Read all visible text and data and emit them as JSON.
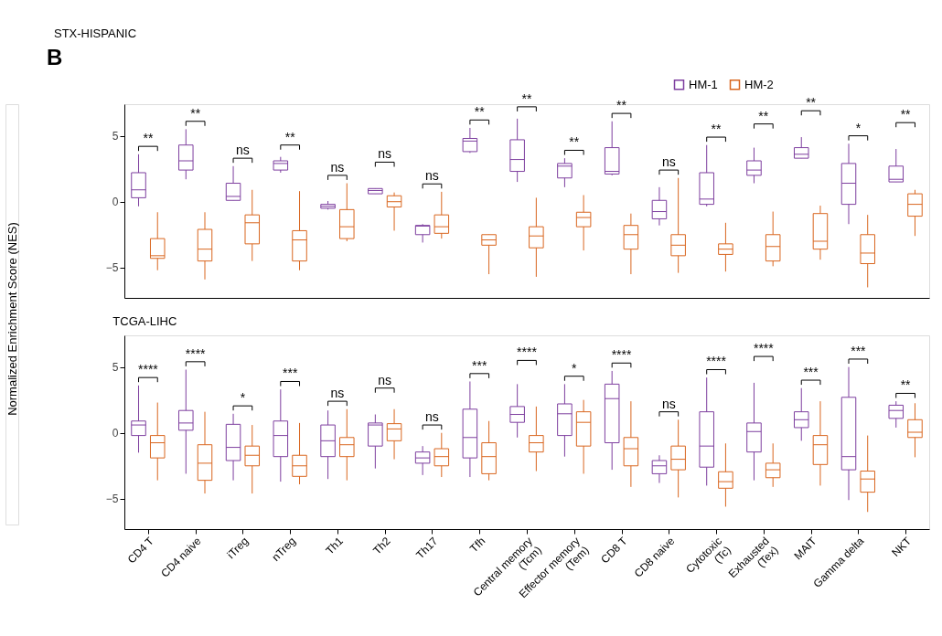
{
  "chart_data": [
    {
      "type": "box",
      "title": "STX-HISPANIC",
      "ylabel": "Normalized Enrichment Score (NES)",
      "annotations": [
        "B",
        "**",
        "**",
        "ns",
        "**",
        "ns",
        "ns",
        "ns",
        "**",
        "**",
        "**",
        "**",
        "ns",
        "**",
        "**",
        "**",
        "*",
        "**"
      ],
      "categories": [
        null,
        null,
        null,
        null,
        null,
        null,
        null,
        null,
        null,
        null,
        null,
        null,
        null,
        null,
        null,
        null,
        null
      ],
      "ylim": [
        -7.3,
        7.4
      ],
      "yticks": [
        -5,
        0,
        5
      ],
      "grid": false,
      "legend": "top right",
      "tick_labels": "y",
      "series": [
        {
          "name": "HM-1",
          "color": "#7e3f9f",
          "boxes": [
            {
              "low": -0.35,
              "q1": 0.3,
              "median": 0.9,
              "q3": 2.2,
              "high": 3.6
            },
            {
              "low": 1.7,
              "q1": 2.4,
              "median": 3.1,
              "q3": 4.3,
              "high": 5.5
            },
            {
              "low": 0.1,
              "q1": 0.1,
              "median": 0.4,
              "q3": 1.4,
              "high": 2.7
            },
            {
              "low": 2.2,
              "q1": 2.4,
              "median": 2.9,
              "q3": 3.1,
              "high": 3.4
            },
            {
              "low": -0.6,
              "q1": -0.5,
              "median": -0.35,
              "q3": -0.2,
              "high": 0.05
            },
            {
              "low": 0.6,
              "q1": 0.6,
              "median": 0.85,
              "q3": 1.0,
              "high": 1.0
            },
            {
              "low": -3.1,
              "q1": -2.5,
              "median": -1.85,
              "q3": -1.8,
              "high": -1.7
            },
            {
              "low": 3.7,
              "q1": 3.8,
              "median": 4.6,
              "q3": 4.8,
              "high": 5.6
            },
            {
              "low": 1.5,
              "q1": 2.3,
              "median": 3.2,
              "q3": 4.7,
              "high": 6.3
            },
            {
              "low": 1.1,
              "q1": 1.8,
              "median": 2.7,
              "q3": 2.9,
              "high": 3.3
            },
            {
              "low": 2.0,
              "q1": 2.1,
              "median": 2.3,
              "q3": 4.1,
              "high": 6.1
            },
            {
              "low": -1.8,
              "q1": -1.3,
              "median": -0.75,
              "q3": 0.1,
              "high": 1.1
            },
            {
              "low": -0.35,
              "q1": -0.2,
              "median": 0.2,
              "q3": 2.2,
              "high": 4.3
            },
            {
              "low": 1.4,
              "q1": 2.0,
              "median": 2.4,
              "q3": 3.1,
              "high": 4.1
            },
            {
              "low": 3.3,
              "q1": 3.3,
              "median": 3.6,
              "q3": 4.1,
              "high": 4.9
            },
            {
              "low": -1.7,
              "q1": -0.2,
              "median": 1.4,
              "q3": 2.9,
              "high": 4.4
            },
            {
              "low": 1.5,
              "q1": 1.5,
              "median": 1.7,
              "q3": 2.7,
              "high": 4.0
            }
          ]
        },
        {
          "name": "HM-2",
          "color": "#d9661f",
          "boxes": [
            {
              "low": -5.2,
              "q1": -4.3,
              "median": -4.1,
              "q3": -2.8,
              "high": -0.8
            },
            {
              "low": -5.9,
              "q1": -4.5,
              "median": -3.6,
              "q3": -2.1,
              "high": -0.8
            },
            {
              "low": -4.5,
              "q1": -3.2,
              "median": -1.6,
              "q3": -1.0,
              "high": 0.9
            },
            {
              "low": -5.2,
              "q1": -4.5,
              "median": -2.9,
              "q3": -2.2,
              "high": 0.8
            },
            {
              "low": -3.0,
              "q1": -2.8,
              "median": -1.9,
              "q3": -0.6,
              "high": 1.4
            },
            {
              "low": -2.2,
              "q1": -0.4,
              "median": 0.0,
              "q3": 0.45,
              "high": 0.7
            },
            {
              "low": -2.8,
              "q1": -2.4,
              "median": -1.9,
              "q3": -1.0,
              "high": 0.75
            },
            {
              "low": -5.5,
              "q1": -3.3,
              "median": -2.9,
              "q3": -2.5,
              "high": -2.5
            },
            {
              "low": -5.7,
              "q1": -3.5,
              "median": -2.6,
              "q3": -1.9,
              "high": 0.3
            },
            {
              "low": -3.7,
              "q1": -1.9,
              "median": -1.2,
              "q3": -0.8,
              "high": 0.5
            },
            {
              "low": -5.5,
              "q1": -3.6,
              "median": -2.5,
              "q3": -1.8,
              "high": -0.9
            },
            {
              "low": -5.4,
              "q1": -4.1,
              "median": -3.3,
              "q3": -2.5,
              "high": 1.8
            },
            {
              "low": -5.3,
              "q1": -4.0,
              "median": -3.6,
              "q3": -3.2,
              "high": -1.6
            },
            {
              "low": -4.9,
              "q1": -4.5,
              "median": -3.4,
              "q3": -2.5,
              "high": -0.75
            },
            {
              "low": -4.4,
              "q1": -3.6,
              "median": -3.0,
              "q3": -0.9,
              "high": -0.3
            },
            {
              "low": -6.5,
              "q1": -4.7,
              "median": -3.9,
              "q3": -2.5,
              "high": -1.0
            },
            {
              "low": -2.6,
              "q1": -1.1,
              "median": -0.2,
              "q3": 0.6,
              "high": 0.9
            }
          ]
        }
      ]
    },
    {
      "type": "box",
      "title": "TCGA-LIHC",
      "annotations": [
        "****",
        "****",
        "*",
        "***",
        "ns",
        "ns",
        "ns",
        "***",
        "****",
        "*",
        "****",
        "ns",
        "****",
        "****",
        "***",
        "***",
        "**"
      ],
      "categories": [
        "CD4 T",
        "CD4 naive",
        "iTreg",
        "nTreg",
        "Th1",
        "Th2",
        "Th17",
        "Tfh",
        "Central memory\n(Tcm)",
        "Effector memory\n(Tem)",
        "CD8 T",
        "CD8 naive",
        "Cytotoxic\n(Tc)",
        "Exhausted\n(Tex)",
        "MAIT",
        "Gamma delta",
        "NKT"
      ],
      "ylim": [
        -7.3,
        7.4
      ],
      "yticks": [
        -5,
        0,
        5
      ],
      "grid": false,
      "series": [
        {
          "name": "HM-1",
          "color": "#7e3f9f",
          "boxes": [
            {
              "low": -1.5,
              "q1": -0.2,
              "median": 0.6,
              "q3": 0.9,
              "high": 3.6
            },
            {
              "low": -3.1,
              "q1": 0.2,
              "median": 0.75,
              "q3": 1.7,
              "high": 4.8
            },
            {
              "low": -3.6,
              "q1": -2.1,
              "median": -1.1,
              "q3": 0.65,
              "high": 1.45
            },
            {
              "low": -3.7,
              "q1": -1.8,
              "median": -0.2,
              "q3": 0.9,
              "high": 3.3
            },
            {
              "low": -3.5,
              "q1": -1.8,
              "median": -0.6,
              "q3": 0.6,
              "high": 1.7
            },
            {
              "low": -2.7,
              "q1": -1.0,
              "median": 0.6,
              "q3": 0.75,
              "high": 1.4
            },
            {
              "low": -3.2,
              "q1": -2.3,
              "median": -1.9,
              "q3": -1.45,
              "high": -1.0
            },
            {
              "low": -3.35,
              "q1": -1.9,
              "median": -0.35,
              "q3": 1.8,
              "high": 3.9
            },
            {
              "low": -0.35,
              "q1": 0.8,
              "median": 1.4,
              "q3": 2.0,
              "high": 3.7
            },
            {
              "low": -1.8,
              "q1": -0.2,
              "median": 1.45,
              "q3": 2.2,
              "high": 3.7
            },
            {
              "low": -2.8,
              "q1": -0.75,
              "median": 2.6,
              "q3": 3.7,
              "high": 4.7
            },
            {
              "low": -3.8,
              "q1": -3.1,
              "median": -2.5,
              "q3": -2.1,
              "high": -1.7
            },
            {
              "low": -4.0,
              "q1": -2.6,
              "median": -1.0,
              "q3": 1.6,
              "high": 4.2
            },
            {
              "low": -3.6,
              "q1": -1.45,
              "median": 0.1,
              "q3": 0.75,
              "high": 3.8
            },
            {
              "low": -0.6,
              "q1": 0.4,
              "median": 1.0,
              "q3": 1.6,
              "high": 3.4
            },
            {
              "low": -5.1,
              "q1": -2.8,
              "median": -1.8,
              "q3": 2.7,
              "high": 5.0
            },
            {
              "low": 0.4,
              "q1": 1.1,
              "median": 1.7,
              "q3": 2.1,
              "high": 2.4
            }
          ]
        },
        {
          "name": "HM-2",
          "color": "#d9661f",
          "boxes": [
            {
              "low": -3.6,
              "q1": -1.9,
              "median": -0.75,
              "q3": -0.2,
              "high": 2.3
            },
            {
              "low": -4.6,
              "q1": -3.6,
              "median": -2.3,
              "q3": -0.9,
              "high": 1.6
            },
            {
              "low": -4.6,
              "q1": -2.5,
              "median": -1.7,
              "q3": -1.0,
              "high": 0.6
            },
            {
              "low": -3.9,
              "q1": -3.3,
              "median": -2.5,
              "q3": -1.7,
              "high": 0.75
            },
            {
              "low": -3.6,
              "q1": -1.8,
              "median": -0.9,
              "q3": -0.35,
              "high": 1.8
            },
            {
              "low": -2.0,
              "q1": -0.6,
              "median": 0.3,
              "q3": 0.7,
              "high": 1.8
            },
            {
              "low": -3.35,
              "q1": -2.5,
              "median": -1.8,
              "q3": -1.2,
              "high": 0.0
            },
            {
              "low": -3.6,
              "q1": -3.1,
              "median": -1.8,
              "q3": -0.75,
              "high": 0.9
            },
            {
              "low": -2.9,
              "q1": -1.45,
              "median": -0.75,
              "q3": -0.2,
              "high": 2.0
            },
            {
              "low": -3.1,
              "q1": -1.0,
              "median": 0.8,
              "q3": 1.6,
              "high": 2.5
            },
            {
              "low": -4.1,
              "q1": -2.5,
              "median": -1.2,
              "q3": -0.35,
              "high": 2.4
            },
            {
              "low": -4.9,
              "q1": -2.8,
              "median": -2.0,
              "q3": -1.0,
              "high": 1.0
            },
            {
              "low": -5.6,
              "q1": -4.2,
              "median": -3.7,
              "q3": -2.95,
              "high": -0.8
            },
            {
              "low": -4.1,
              "q1": -3.4,
              "median": -2.8,
              "q3": -2.3,
              "high": -0.8
            },
            {
              "low": -4.0,
              "q1": -2.4,
              "median": -0.9,
              "q3": -0.2,
              "high": 2.4
            },
            {
              "low": -6.0,
              "q1": -4.5,
              "median": -3.5,
              "q3": -2.9,
              "high": -0.2
            },
            {
              "low": -1.85,
              "q1": -0.35,
              "median": 0.05,
              "q3": 1.0,
              "high": 2.25
            }
          ]
        }
      ]
    }
  ]
}
